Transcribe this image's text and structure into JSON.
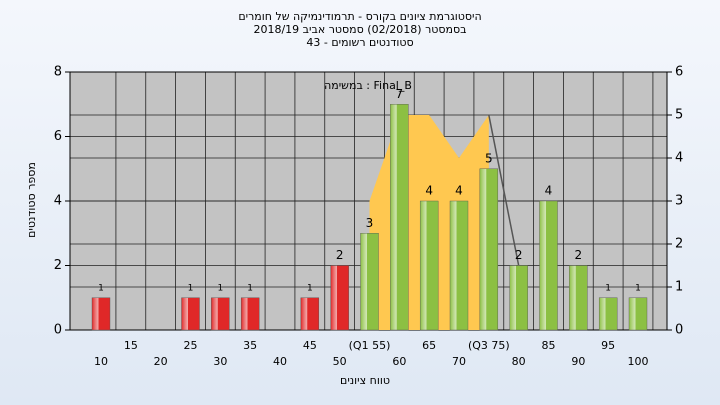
{
  "chart_data": {
    "type": "bar",
    "title": "היסטוגרמת ציונים בקורס - תרמודינמיקה של חומרים",
    "subtitle": "בסמסטר  (02/2018)  סמסטר אביב 2018/19",
    "subtitle2": "סטודנטים רשומים - 43",
    "annotation": "במשימה : Final_B",
    "ylabel": "מספר סטודנטים",
    "xlabel": "טווח ציונים",
    "categories": [
      "10",
      "15",
      "20",
      "25",
      "30",
      "35",
      "40",
      "45",
      "50",
      "(Q1 55)",
      "60",
      "65",
      "70",
      "(Q3 75)",
      "80",
      "85",
      "90",
      "95",
      "100"
    ],
    "series": [
      {
        "color": "#e02828",
        "values": [
          1,
          0,
          0,
          1,
          1,
          1,
          0,
          1,
          2,
          null,
          null,
          null,
          null,
          null,
          null,
          null,
          null,
          null,
          null
        ]
      },
      {
        "color": "#8cc043",
        "values": [
          null,
          null,
          null,
          null,
          null,
          null,
          null,
          null,
          null,
          3,
          7,
          4,
          4,
          5,
          2,
          4,
          2,
          1,
          1
        ]
      },
      {
        "color": "#ffc850",
        "axis": "y2",
        "kind": "area",
        "values": [
          null,
          null,
          null,
          null,
          null,
          null,
          null,
          null,
          null,
          3,
          5,
          5,
          4,
          5,
          null,
          null,
          null,
          null,
          null
        ]
      },
      {
        "color": "#555555",
        "axis": "y2",
        "kind": "line",
        "values": [
          null,
          null,
          null,
          null,
          null,
          null,
          null,
          null,
          null,
          null,
          null,
          null,
          null,
          5,
          1.5,
          null,
          null,
          null,
          null
        ]
      }
    ],
    "ylim": [
      0,
      8
    ],
    "yticks": [
      0,
      2,
      4,
      6,
      8
    ],
    "y2lim": [
      0,
      6
    ],
    "y2ticks": [
      0,
      1,
      2,
      3,
      4,
      5,
      6
    ],
    "grid": true
  }
}
